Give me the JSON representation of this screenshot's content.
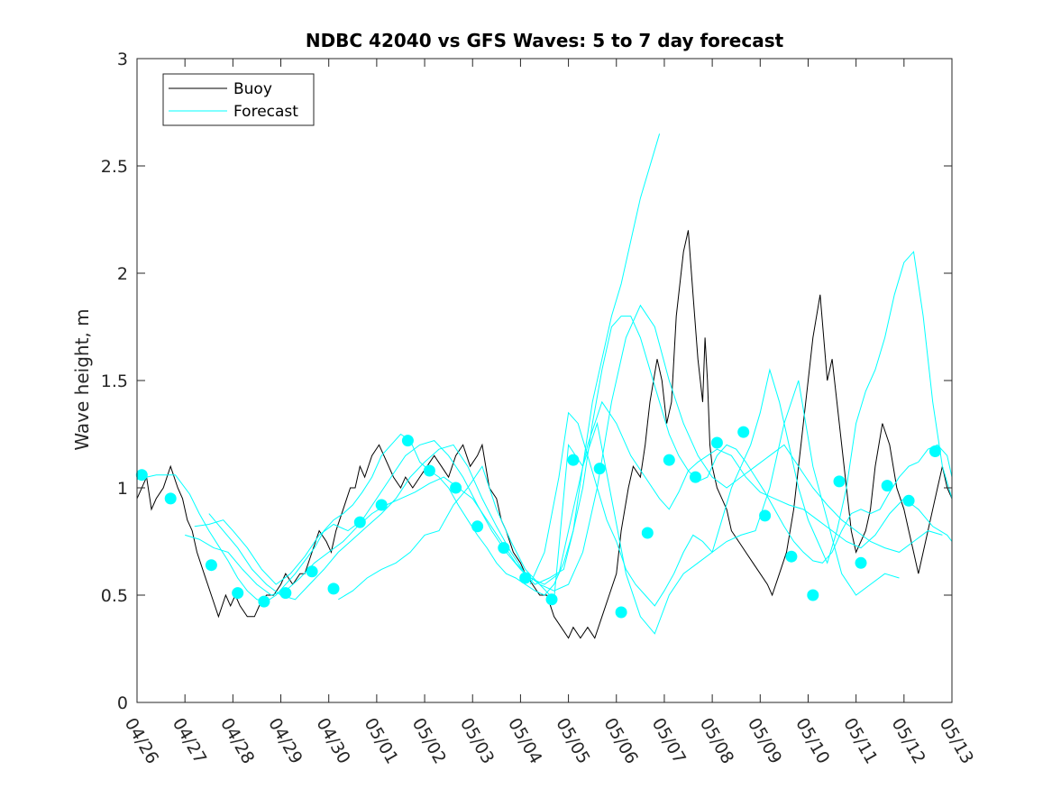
{
  "chart_data": {
    "type": "line",
    "title": "NDBC 42040 vs GFS Waves: 5 to 7 day forecast",
    "xlabel": "",
    "ylabel": "Wave height, m",
    "xlim": [
      0,
      17
    ],
    "ylim": [
      0,
      3
    ],
    "x_unit": "days since 04/26",
    "x_tick_labels": [
      "04/26",
      "04/27",
      "04/28",
      "04/29",
      "04/30",
      "05/01",
      "05/02",
      "05/03",
      "05/04",
      "05/05",
      "05/06",
      "05/07",
      "05/08",
      "05/09",
      "05/10",
      "05/11",
      "05/12",
      "05/13"
    ],
    "y_ticks": [
      0,
      0.5,
      1,
      1.5,
      2,
      2.5,
      3
    ],
    "y_tick_labels": [
      "0",
      "0.5",
      "1",
      "1.5",
      "2",
      "2.5",
      "3"
    ],
    "grid": false,
    "legend_position": "top-left",
    "series": [
      {
        "name": "Buoy",
        "color": "#000000",
        "x": [
          0.0,
          0.2,
          0.3,
          0.4,
          0.55,
          0.7,
          0.85,
          0.95,
          1.05,
          1.15,
          1.25,
          1.4,
          1.55,
          1.7,
          1.85,
          1.95,
          2.05,
          2.15,
          2.3,
          2.45,
          2.55,
          2.7,
          2.85,
          3.0,
          3.1,
          3.25,
          3.4,
          3.5,
          3.65,
          3.8,
          3.95,
          4.05,
          4.15,
          4.3,
          4.45,
          4.55,
          4.65,
          4.75,
          4.9,
          5.05,
          5.15,
          5.25,
          5.35,
          5.5,
          5.6,
          5.75,
          5.9,
          6.05,
          6.2,
          6.35,
          6.5,
          6.65,
          6.8,
          6.95,
          7.1,
          7.2,
          7.35,
          7.5,
          7.6,
          7.7,
          7.85,
          8.0,
          8.1,
          8.25,
          8.4,
          8.55,
          8.7,
          8.85,
          9.0,
          9.1,
          9.25,
          9.4,
          9.55,
          9.7,
          9.85,
          10.0,
          10.1,
          10.25,
          10.35,
          10.5,
          10.6,
          10.65,
          10.7,
          10.85,
          10.95,
          11.05,
          11.15,
          11.25,
          11.4,
          11.5,
          11.6,
          11.7,
          11.8,
          11.85,
          11.9,
          11.95,
          12.0,
          12.1,
          12.2,
          12.3,
          12.4,
          12.55,
          12.7,
          12.85,
          13.0,
          13.15,
          13.25,
          13.4,
          13.55,
          13.7,
          13.85,
          14.0,
          14.1,
          14.25,
          14.4,
          14.5,
          14.6,
          14.7,
          14.8,
          14.85,
          14.9,
          15.0,
          15.1,
          15.2,
          15.3,
          15.4,
          15.55,
          15.7,
          15.85,
          16.0,
          16.1,
          16.2,
          16.3,
          16.4,
          16.5,
          16.6,
          16.7,
          16.8,
          16.9,
          17.0
        ],
        "y": [
          0.95,
          1.05,
          0.9,
          0.95,
          1.0,
          1.1,
          1.0,
          0.95,
          0.85,
          0.8,
          0.7,
          0.6,
          0.5,
          0.4,
          0.5,
          0.45,
          0.5,
          0.45,
          0.4,
          0.4,
          0.45,
          0.5,
          0.5,
          0.55,
          0.6,
          0.55,
          0.6,
          0.6,
          0.7,
          0.8,
          0.75,
          0.7,
          0.8,
          0.9,
          1.0,
          1.0,
          1.1,
          1.05,
          1.15,
          1.2,
          1.15,
          1.1,
          1.05,
          1.0,
          1.05,
          1.0,
          1.05,
          1.1,
          1.15,
          1.1,
          1.05,
          1.15,
          1.2,
          1.1,
          1.15,
          1.2,
          1.0,
          0.95,
          0.85,
          0.8,
          0.7,
          0.65,
          0.6,
          0.55,
          0.5,
          0.5,
          0.4,
          0.35,
          0.3,
          0.35,
          0.3,
          0.35,
          0.3,
          0.4,
          0.5,
          0.6,
          0.8,
          1.0,
          1.1,
          1.05,
          1.2,
          1.3,
          1.4,
          1.6,
          1.5,
          1.3,
          1.4,
          1.8,
          2.1,
          2.2,
          1.9,
          1.6,
          1.4,
          1.7,
          1.5,
          1.2,
          1.1,
          1.0,
          0.95,
          0.9,
          0.8,
          0.75,
          0.7,
          0.65,
          0.6,
          0.55,
          0.5,
          0.6,
          0.7,
          0.9,
          1.2,
          1.5,
          1.7,
          1.9,
          1.5,
          1.6,
          1.4,
          1.2,
          1.0,
          0.9,
          0.8,
          0.7,
          0.75,
          0.8,
          0.9,
          1.1,
          1.3,
          1.2,
          1.0,
          0.9,
          0.8,
          0.7,
          0.6,
          0.7,
          0.8,
          0.9,
          1.0,
          1.1,
          1.0,
          0.95
        ]
      },
      {
        "name": "Forecast",
        "color": "#00FFFF",
        "x": [
          0.1,
          0.7,
          1.55,
          2.1,
          2.65,
          3.1,
          3.65,
          4.1,
          4.65,
          5.1,
          5.65,
          6.1,
          6.65,
          7.1,
          7.65,
          8.1,
          8.65,
          9.1,
          9.65,
          10.1,
          10.65,
          11.1,
          11.65,
          12.1,
          12.65,
          13.1,
          13.65,
          14.1,
          14.65,
          15.1,
          15.65,
          16.1,
          16.65
        ],
        "y": [
          1.06,
          0.95,
          0.64,
          0.51,
          0.47,
          0.51,
          0.61,
          0.53,
          0.84,
          0.92,
          1.22,
          1.08,
          1.0,
          0.82,
          0.72,
          0.58,
          0.48,
          1.13,
          1.09,
          0.42,
          0.79,
          1.13,
          1.05,
          1.21,
          1.26,
          0.87,
          0.68,
          0.5,
          1.03,
          0.65,
          1.01,
          0.94,
          1.17
        ]
      },
      {
        "name": "",
        "color": "#00FFFF",
        "x": [
          0.0,
          0.4,
          0.8,
          1.1,
          1.3,
          1.5,
          1.7,
          1.9,
          2.1,
          2.3,
          2.5,
          2.7,
          2.9,
          3.1,
          3.3,
          3.5,
          3.7,
          3.9,
          4.1,
          4.3,
          4.5,
          4.7,
          4.9,
          5.1,
          5.3,
          5.5,
          5.7,
          5.9,
          6.1,
          6.3,
          6.5,
          6.7,
          6.9,
          7.1,
          7.3,
          7.5,
          7.7,
          7.9,
          8.1,
          8.3,
          8.5,
          8.7,
          8.9,
          9.1,
          9.3,
          9.5,
          9.7,
          9.9,
          10.1,
          10.3,
          10.5,
          10.7,
          10.9,
          11.1,
          11.3,
          11.5,
          11.7,
          11.9,
          12.1,
          12.3,
          12.5,
          12.7,
          12.9,
          13.1,
          13.3,
          13.5,
          13.7,
          13.9,
          14.1,
          14.3,
          14.5,
          14.7,
          14.9,
          15.1,
          15.3,
          15.5,
          15.7,
          15.9,
          16.1,
          16.3,
          16.5,
          16.7,
          16.9,
          17.0
        ],
        "y": [
          1.04,
          1.06,
          1.06,
          0.97,
          0.88,
          0.8,
          0.73,
          0.66,
          0.58,
          0.52,
          0.48,
          0.47,
          0.5,
          0.55,
          0.6,
          0.66,
          0.72,
          0.8,
          0.85,
          0.88,
          0.92,
          0.98,
          1.05,
          1.15,
          1.2,
          1.25,
          1.22,
          1.12,
          1.08,
          1.05,
          1.0,
          0.92,
          0.85,
          0.78,
          0.72,
          0.65,
          0.6,
          0.58,
          0.55,
          0.52,
          0.5,
          0.55,
          0.65,
          0.8,
          1.0,
          1.3,
          1.55,
          1.75,
          1.8,
          1.8,
          1.7,
          1.55,
          1.4,
          1.25,
          1.15,
          1.08,
          1.03,
          1.05,
          1.15,
          1.2,
          1.18,
          1.12,
          1.05,
          0.98,
          0.9,
          0.82,
          0.75,
          0.7,
          0.66,
          0.65,
          0.7,
          0.8,
          0.88,
          0.9,
          0.88,
          0.9,
          0.98,
          1.05,
          1.1,
          1.12,
          1.18,
          1.2,
          1.15,
          1.05
        ]
      },
      {
        "name": "",
        "color": "#00FFFF",
        "x": [
          1.0,
          1.3,
          1.6,
          1.9,
          2.2,
          2.5,
          2.8,
          3.1,
          3.4,
          3.7,
          4.0,
          4.3,
          4.6,
          4.9,
          5.2,
          5.5,
          5.8,
          6.1,
          6.4,
          6.7,
          7.0,
          7.3,
          7.6,
          7.9,
          8.2,
          8.5,
          8.8,
          9.1,
          9.4,
          9.7,
          10.0,
          10.3,
          10.6,
          10.9,
          11.1,
          11.3,
          11.5,
          11.7,
          11.9,
          12.1,
          12.4,
          12.7,
          13.0,
          13.3,
          13.6,
          13.9,
          14.2,
          14.5,
          14.8,
          15.1,
          15.4,
          15.7,
          16.0,
          16.3,
          16.6,
          16.9,
          17.0
        ],
        "y": [
          0.78,
          0.76,
          0.72,
          0.7,
          0.62,
          0.55,
          0.5,
          0.52,
          0.58,
          0.65,
          0.7,
          0.75,
          0.82,
          0.88,
          0.92,
          0.95,
          0.98,
          1.02,
          1.05,
          1.0,
          0.95,
          0.85,
          0.75,
          0.65,
          0.58,
          0.55,
          0.6,
          0.9,
          1.2,
          1.4,
          1.3,
          1.15,
          1.05,
          0.95,
          0.9,
          0.98,
          1.08,
          1.12,
          1.15,
          1.18,
          1.15,
          1.05,
          0.98,
          0.95,
          0.92,
          0.9,
          0.85,
          0.8,
          0.75,
          0.72,
          0.78,
          0.88,
          0.95,
          0.9,
          0.82,
          0.78,
          0.75
        ]
      },
      {
        "name": "",
        "color": "#00FFFF",
        "x": [
          1.2,
          1.5,
          1.8,
          2.0,
          2.3,
          2.6,
          2.9,
          3.2,
          3.5,
          3.8,
          4.1,
          4.4,
          4.7,
          5.0,
          5.3,
          5.6,
          5.9,
          6.2,
          6.5,
          6.8,
          7.1,
          7.4,
          7.7,
          8.0,
          8.3,
          8.6,
          8.9,
          9.1,
          9.3,
          9.5,
          9.7,
          9.9,
          10.1,
          10.3,
          10.5,
          10.7,
          10.9
        ],
        "y": [
          0.82,
          0.83,
          0.85,
          0.8,
          0.72,
          0.62,
          0.55,
          0.6,
          0.68,
          0.78,
          0.83,
          0.8,
          0.85,
          0.95,
          1.05,
          1.15,
          1.2,
          1.22,
          1.15,
          1.05,
          0.92,
          0.8,
          0.7,
          0.62,
          0.55,
          0.58,
          0.62,
          0.8,
          1.1,
          1.4,
          1.6,
          1.8,
          1.95,
          2.15,
          2.35,
          2.5,
          2.65
        ]
      },
      {
        "name": "",
        "color": "#00FFFF",
        "x": [
          1.5,
          1.8,
          2.1,
          2.4,
          2.7,
          3.0,
          3.3,
          3.6,
          3.9,
          4.2,
          4.5,
          4.8,
          5.1,
          5.4,
          5.7,
          6.0,
          6.3,
          6.6,
          6.9,
          7.2,
          7.5,
          7.8,
          8.1,
          8.4,
          8.7,
          9.0,
          9.3,
          9.6,
          9.9,
          10.2,
          10.5,
          10.8,
          11.1,
          11.4,
          11.7,
          12.0,
          12.3,
          12.6,
          12.9,
          13.2,
          13.5,
          13.8,
          14.1,
          14.4,
          14.7,
          15.0,
          15.3,
          15.6,
          15.9,
          16.2,
          16.5,
          16.8
        ],
        "y": [
          0.88,
          0.8,
          0.72,
          0.62,
          0.55,
          0.5,
          0.48,
          0.55,
          0.62,
          0.7,
          0.76,
          0.82,
          0.88,
          0.95,
          1.05,
          1.12,
          1.18,
          1.2,
          1.1,
          0.95,
          0.82,
          0.7,
          0.6,
          0.55,
          0.52,
          0.55,
          0.7,
          1.0,
          1.4,
          1.7,
          1.85,
          1.75,
          1.5,
          1.3,
          1.15,
          1.05,
          1.0,
          1.05,
          1.1,
          1.15,
          1.2,
          1.1,
          1.0,
          0.92,
          0.85,
          0.8,
          0.75,
          0.72,
          0.7,
          0.75,
          0.8,
          0.78
        ]
      },
      {
        "name": "",
        "color": "#00FFFF",
        "x": [
          4.2,
          4.5,
          4.8,
          5.1,
          5.4,
          5.7,
          6.0,
          6.3,
          6.6,
          6.9,
          7.2,
          7.5,
          7.8,
          8.1,
          8.4,
          8.7,
          9.0,
          9.3,
          9.6,
          9.9,
          10.2,
          10.5,
          10.8,
          11.1,
          11.4,
          11.7,
          12.0,
          12.3,
          12.6,
          12.9,
          13.2,
          13.5,
          13.8,
          14.1,
          14.4,
          14.7,
          15.0,
          15.3,
          15.6,
          15.9
        ],
        "y": [
          0.48,
          0.52,
          0.58,
          0.62,
          0.65,
          0.7,
          0.78,
          0.8,
          0.92,
          1.0,
          1.1,
          0.9,
          0.75,
          0.62,
          0.55,
          0.48,
          1.2,
          1.1,
          1.3,
          0.95,
          0.6,
          0.4,
          0.32,
          0.5,
          0.6,
          0.65,
          0.7,
          0.75,
          0.78,
          0.8,
          1.0,
          1.3,
          1.5,
          1.1,
          0.85,
          0.6,
          0.5,
          0.55,
          0.6,
          0.58
        ]
      },
      {
        "name": "",
        "color": "#00FFFF",
        "x": [
          8.2,
          8.5,
          8.8,
          9.0,
          9.2,
          9.4,
          9.6,
          9.8,
          10.0,
          10.2,
          10.4,
          10.6,
          10.8,
          11.0,
          11.2,
          11.4,
          11.6,
          11.8,
          12.0,
          12.2,
          12.4,
          12.6,
          12.8,
          13.0,
          13.2,
          13.4,
          13.6,
          13.8,
          14.0,
          14.2,
          14.4,
          14.6,
          14.8,
          15.0,
          15.2,
          15.4,
          15.6,
          15.8,
          16.0,
          16.2,
          16.4,
          16.6,
          16.8,
          17.0
        ],
        "y": [
          0.55,
          0.7,
          1.05,
          1.35,
          1.3,
          1.15,
          1.0,
          0.85,
          0.75,
          0.62,
          0.55,
          0.5,
          0.45,
          0.52,
          0.6,
          0.7,
          0.78,
          0.75,
          0.7,
          0.85,
          1.0,
          1.1,
          1.2,
          1.35,
          1.55,
          1.4,
          1.2,
          1.0,
          0.85,
          0.75,
          0.65,
          0.8,
          1.0,
          1.3,
          1.45,
          1.55,
          1.7,
          1.9,
          2.05,
          2.1,
          1.8,
          1.4,
          1.1,
          0.95
        ]
      }
    ]
  }
}
